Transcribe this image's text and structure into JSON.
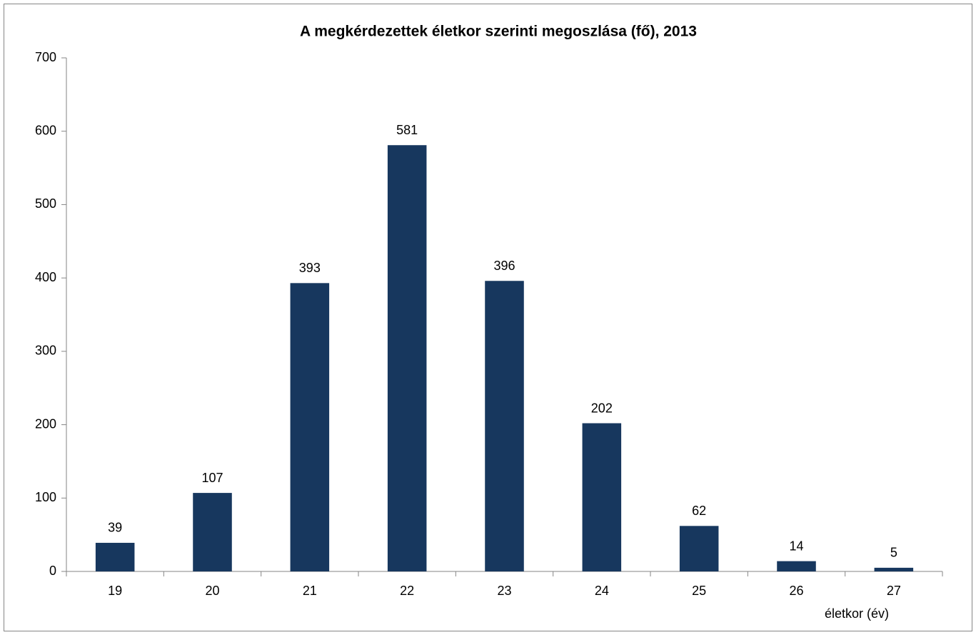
{
  "chart_data": {
    "type": "bar",
    "title": "A megkérdezettek életkor szerinti megoszlása (fő), 2013",
    "x_label": "életkor (év)",
    "categories": [
      "19",
      "20",
      "21",
      "22",
      "23",
      "24",
      "25",
      "26",
      "27"
    ],
    "values": [
      39,
      107,
      393,
      581,
      396,
      202,
      62,
      14,
      5
    ],
    "color": "#17375e",
    "ylim": [
      0,
      700
    ],
    "yticks": [
      0,
      100,
      200,
      300,
      400,
      500,
      600,
      700
    ],
    "grid": false
  }
}
